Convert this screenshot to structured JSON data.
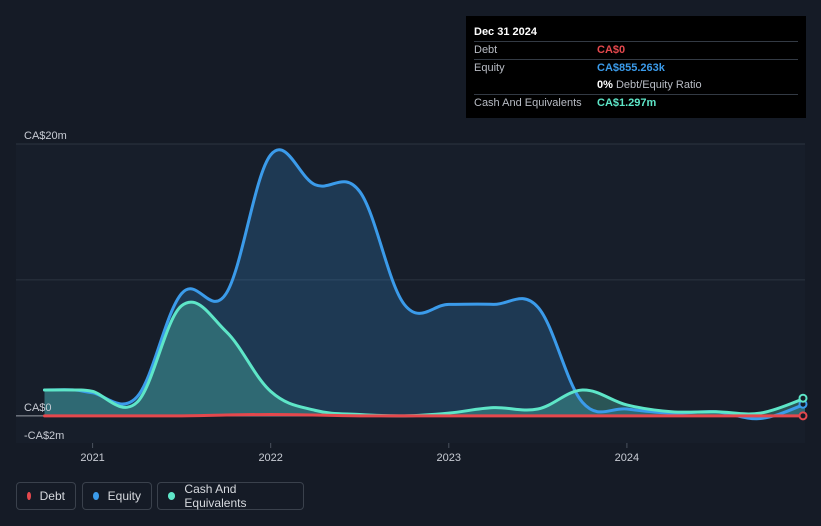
{
  "tooltip": {
    "date": "Dec 31 2024",
    "rows": [
      {
        "label": "Debt",
        "value": "CA$0",
        "color": "#e5484d"
      },
      {
        "label": "Equity",
        "value": "CA$855.263k",
        "color": "#3b9bea"
      },
      {
        "label": "",
        "value": "0%",
        "suffix": "Debt/Equity Ratio",
        "color": "#ffffff"
      },
      {
        "label": "Cash And Equivalents",
        "value": "CA$1.297m",
        "color": "#5ee6c8"
      }
    ]
  },
  "legend": [
    {
      "label": "Debt",
      "color": "#e5484d"
    },
    {
      "label": "Equity",
      "color": "#3b9bea"
    },
    {
      "label": "Cash And Equivalents",
      "color": "#5ee6c8"
    }
  ],
  "chart_data": {
    "type": "area",
    "y_labels": [
      "CA$20m",
      "CA$0",
      "-CA$2m"
    ],
    "x_ticks": [
      "2021",
      "2022",
      "2023",
      "2024"
    ],
    "x_tick_values": [
      2021.0,
      2022.0,
      2023.0,
      2024.0
    ],
    "xlim": [
      2020.57,
      2025.0
    ],
    "ylim": [
      -2,
      20
    ],
    "grid": true,
    "legend_position": "bottom-left",
    "series": [
      {
        "name": "Debt",
        "color": "#e5484d",
        "x": [
          2020.73,
          2021.0,
          2021.5,
          2022.0,
          2022.5,
          2023.0,
          2023.5,
          2024.0,
          2024.5,
          2025.0
        ],
        "y": [
          0,
          0,
          0,
          0.1,
          0,
          0,
          0,
          0,
          0,
          0
        ]
      },
      {
        "name": "Equity",
        "color": "#3b9bea",
        "x": [
          2020.73,
          2020.9,
          2021.0,
          2021.25,
          2021.5,
          2021.75,
          2022.0,
          2022.25,
          2022.5,
          2022.75,
          2023.0,
          2023.25,
          2023.5,
          2023.75,
          2024.0,
          2024.25,
          2024.5,
          2024.75,
          2025.0
        ],
        "y": [
          1.9,
          1.9,
          1.7,
          1.4,
          9.0,
          9.0,
          19.2,
          17.0,
          16.5,
          8.2,
          8.2,
          8.2,
          8.0,
          1.0,
          0.5,
          0.2,
          0.3,
          -0.2,
          0.855
        ]
      },
      {
        "name": "Cash And Equivalents",
        "color": "#5ee6c8",
        "x": [
          2020.73,
          2020.9,
          2021.0,
          2021.25,
          2021.5,
          2021.75,
          2022.0,
          2022.25,
          2022.5,
          2022.75,
          2023.0,
          2023.25,
          2023.5,
          2023.75,
          2024.0,
          2024.25,
          2024.5,
          2024.75,
          2025.0
        ],
        "y": [
          1.9,
          1.9,
          1.8,
          1.0,
          8.1,
          6.2,
          1.8,
          0.4,
          0.1,
          0.0,
          0.2,
          0.6,
          0.5,
          1.9,
          0.8,
          0.3,
          0.3,
          0.2,
          1.297
        ]
      }
    ]
  }
}
